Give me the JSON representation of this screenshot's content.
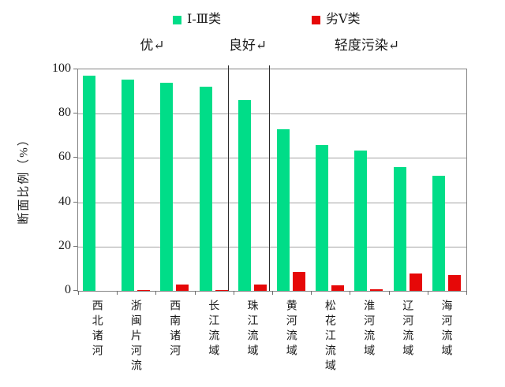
{
  "chart_data": {
    "type": "bar",
    "title": "",
    "categories": [
      "西北诸河",
      "浙闽片河流",
      "西南诸河",
      "长江流域",
      "珠江流域",
      "黄河流域",
      "松花江流域",
      "淮河流域",
      "辽河流域",
      "海河流域"
    ],
    "series": [
      {
        "name": "Ⅰ-Ⅲ类",
        "color": "#00DD88",
        "values": [
          97,
          95.5,
          94,
          92,
          86,
          73,
          66,
          63.5,
          56,
          52
        ]
      },
      {
        "name": "劣Ⅴ类",
        "color": "#E60808",
        "values": [
          0,
          0.5,
          3,
          0.5,
          3,
          8.5,
          2.5,
          0.7,
          8,
          7
        ]
      }
    ],
    "ylabel": "断面比例（%）",
    "xlabel": "",
    "ylim": [
      0,
      100
    ],
    "yticks": [
      0,
      20,
      40,
      60,
      80,
      100
    ],
    "grid": true,
    "legend_position": "top",
    "sections": [
      {
        "label": "优↵",
        "categories_from": 0,
        "categories_to": 3
      },
      {
        "label": "良好↵",
        "categories_from": 4,
        "categories_to": 4
      },
      {
        "label": "轻度污染↵",
        "categories_from": 5,
        "categories_to": 9
      }
    ],
    "dividers_pct": [
      38.6,
      49.2
    ]
  },
  "colors": {
    "grid": "#a3a3a3",
    "plot_border": "#848484",
    "divider": "#2b2b2b",
    "axis_tick": "#6e6e6e",
    "text": "#1a1a1a",
    "background": "#ffffff"
  }
}
